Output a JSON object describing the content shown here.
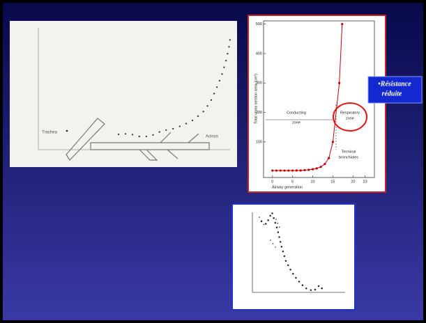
{
  "left_figure": {
    "labels": [
      "Trachea",
      "Acinus"
    ]
  },
  "chart_data": {
    "type": "line",
    "x_label": "Airway generation",
    "y_label": "Total cross section area (cm²)",
    "x": [
      0,
      1,
      2,
      3,
      4,
      5,
      6,
      7,
      8,
      9,
      10,
      11,
      12,
      13,
      14,
      15,
      16.6,
      17.3
    ],
    "values": [
      2.5,
      2.5,
      2.5,
      2.5,
      2.5,
      2.5,
      3,
      3,
      4,
      5,
      7,
      10,
      15,
      25,
      45,
      100,
      300,
      500
    ],
    "color": "#cc0000",
    "xlim": [
      -2.2,
      25.3
    ],
    "ylim": [
      -21,
      511
    ],
    "xticks": [
      0,
      5,
      10,
      15,
      20,
      23
    ],
    "yticks": [
      100,
      200,
      300,
      400,
      500
    ],
    "annotations": [
      {
        "lines": [
          "Conducting",
          "zone"
        ]
      },
      {
        "lines": [
          "Respiratory",
          "zone"
        ]
      },
      {
        "lines": [
          "Terminal",
          "bronchioles"
        ]
      }
    ]
  },
  "callout": {
    "lines": [
      "•Résistance",
      "réduite"
    ]
  }
}
